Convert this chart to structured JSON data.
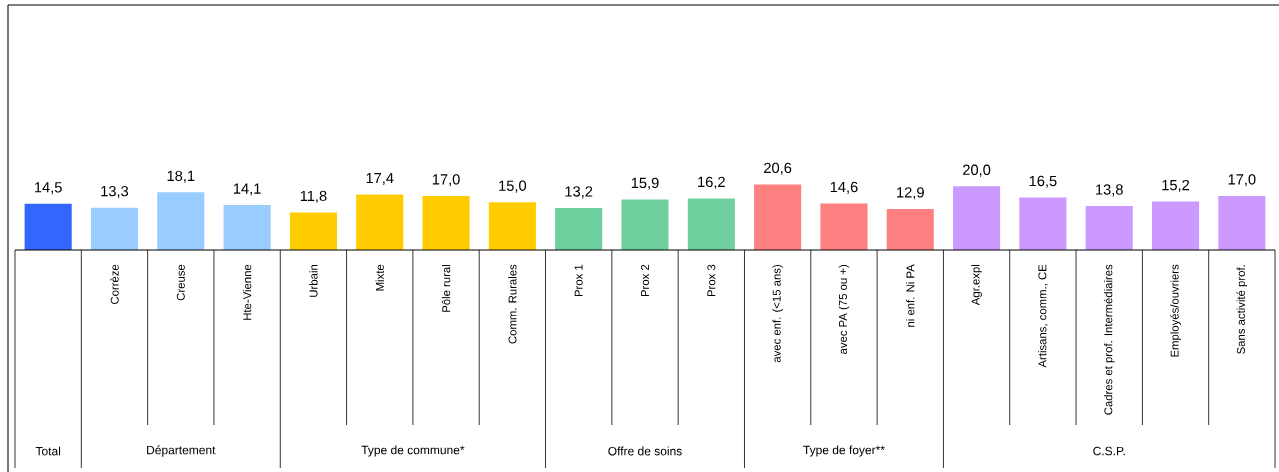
{
  "chart_data": {
    "type": "bar",
    "categories": [
      null,
      "Corrèze",
      "Creuse",
      "Hte-Vienne",
      "Urbain",
      "Mixte",
      "Pôle rural",
      "Comm. Rurales",
      "Prox 1",
      "Prox 2",
      "Prox 3",
      "avec enf. (<15 ans)",
      "avec PA (75 ou +)",
      "ni enf. Ni PA",
      "Agr.expl",
      "Artisans, comm., CE",
      "Cadres et prof. Intermédiaires",
      "Employés/ouvriers",
      "Sans activité prof."
    ],
    "values": [
      14.5,
      13.3,
      18.1,
      14.1,
      11.8,
      17.4,
      17.0,
      15.0,
      13.2,
      15.9,
      16.2,
      20.6,
      14.6,
      12.9,
      20.0,
      16.5,
      13.8,
      15.2,
      17.0
    ],
    "colors": [
      "#3366ff",
      "#99ccff",
      "#99ccff",
      "#99ccff",
      "#ffcc00",
      "#ffcc00",
      "#ffcc00",
      "#ffcc00",
      "#6fcf9f",
      "#6fcf9f",
      "#6fcf9f",
      "#ff8080",
      "#ff8080",
      "#ff8080",
      "#cc99ff",
      "#cc99ff",
      "#cc99ff",
      "#cc99ff",
      "#cc99ff"
    ],
    "value_labels": [
      "14,5",
      "13,3",
      "18,1",
      "14,1",
      "11,8",
      "17,4",
      "17,0",
      "15,0",
      "13,2",
      "15,9",
      "16,2",
      "20,6",
      "14,6",
      "12,9",
      "20,0",
      "16,5",
      "13,8",
      "15,2",
      "17,0"
    ],
    "ylim": [
      0,
      76
    ],
    "annotations": [
      "Total",
      "Département",
      "Type de commune*",
      "Offre de soins",
      "Type de foyer**",
      "C.S.P."
    ]
  }
}
